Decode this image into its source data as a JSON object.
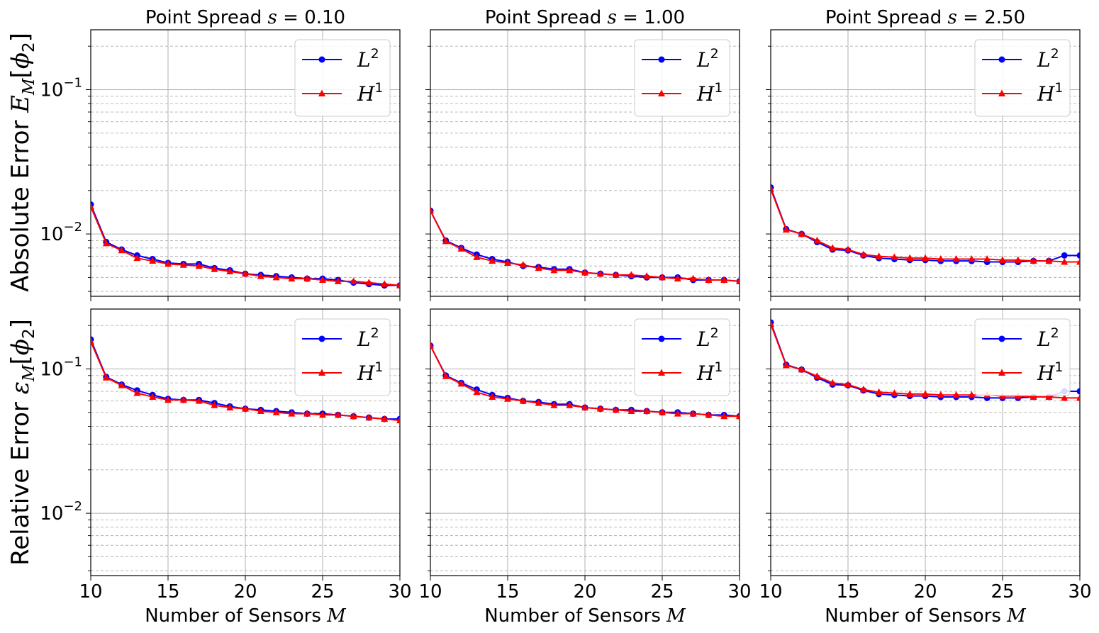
{
  "figure": {
    "row_ylabels": [
      {
        "prefix": "Absolute Error ",
        "sym": "E",
        "sub": "M",
        "bracket_open": "[",
        "phi": "ϕ",
        "phi_sub": "2",
        "bracket_close": "]"
      },
      {
        "prefix": "Relative Error ",
        "sym": "ε",
        "sub": "M",
        "bracket_open": "[",
        "phi": "ϕ",
        "phi_sub": "2",
        "bracket_close": "]"
      }
    ],
    "xlabel": {
      "text": "Number of Sensors ",
      "sym": "M"
    }
  },
  "chart_data": [
    {
      "type": "line",
      "row": 0,
      "col": 0,
      "title": {
        "text": "Point Spread ",
        "sym": "s",
        "eq": " = ",
        "value": "0.10"
      },
      "xlim": [
        10,
        30
      ],
      "ylim": [
        0.0037,
        0.26
      ],
      "yscale": "log",
      "xticks": [
        10,
        15,
        20,
        25,
        30
      ],
      "yticks": [
        {
          "v": 0.01,
          "base": "10",
          "exp": "−2"
        },
        {
          "v": 0.1,
          "base": "10",
          "exp": "−1"
        }
      ],
      "grid": true,
      "legend": "top-right",
      "x": [
        10,
        11,
        12,
        13,
        14,
        15,
        16,
        17,
        18,
        19,
        20,
        21,
        22,
        23,
        24,
        25,
        26,
        27,
        28,
        29,
        30
      ],
      "series": [
        {
          "name": "L",
          "sup": "2",
          "color": "#0000ff",
          "marker": "circle",
          "values": [
            0.016,
            0.0088,
            0.0078,
            0.0071,
            0.0067,
            0.0063,
            0.0062,
            0.0062,
            0.0058,
            0.0056,
            0.0053,
            0.0052,
            0.0051,
            0.005,
            0.0049,
            0.0049,
            0.0048,
            0.0046,
            0.0045,
            0.0044,
            0.0044
          ]
        },
        {
          "name": "H",
          "sup": "1",
          "color": "#ff0000",
          "marker": "triangle",
          "values": [
            0.0155,
            0.0086,
            0.0077,
            0.0068,
            0.0065,
            0.0062,
            0.0061,
            0.006,
            0.0057,
            0.0055,
            0.0053,
            0.0051,
            0.005,
            0.0049,
            0.0049,
            0.0048,
            0.0047,
            0.0047,
            0.0046,
            0.0045,
            0.0044
          ]
        }
      ]
    },
    {
      "type": "line",
      "row": 0,
      "col": 1,
      "title": {
        "text": "Point Spread ",
        "sym": "s",
        "eq": " = ",
        "value": "1.00"
      },
      "xlim": [
        10,
        30
      ],
      "ylim": [
        0.0037,
        0.26
      ],
      "yscale": "log",
      "xticks": [
        10,
        15,
        20,
        25,
        30
      ],
      "yticks": [
        {
          "v": 0.01,
          "base": "10",
          "exp": "−2"
        },
        {
          "v": 0.1,
          "base": "10",
          "exp": "−1"
        }
      ],
      "grid": true,
      "legend": "top-right",
      "x": [
        10,
        11,
        12,
        13,
        14,
        15,
        16,
        17,
        18,
        19,
        20,
        21,
        22,
        23,
        24,
        25,
        26,
        27,
        28,
        29,
        30
      ],
      "series": [
        {
          "name": "L",
          "sup": "2",
          "color": "#0000ff",
          "marker": "circle",
          "values": [
            0.0145,
            0.009,
            0.008,
            0.0072,
            0.0067,
            0.0064,
            0.006,
            0.0059,
            0.0057,
            0.0057,
            0.0054,
            0.0053,
            0.0052,
            0.0051,
            0.005,
            0.005,
            0.005,
            0.0048,
            0.0048,
            0.0048,
            0.0047
          ]
        },
        {
          "name": "H",
          "sup": "1",
          "color": "#ff0000",
          "marker": "triangle",
          "values": [
            0.0145,
            0.0089,
            0.0079,
            0.0069,
            0.0065,
            0.0063,
            0.0061,
            0.0058,
            0.0056,
            0.0056,
            0.0054,
            0.0053,
            0.0052,
            0.0052,
            0.0051,
            0.005,
            0.0049,
            0.0049,
            0.0048,
            0.0048,
            0.0047
          ]
        }
      ]
    },
    {
      "type": "line",
      "row": 0,
      "col": 2,
      "title": {
        "text": "Point Spread ",
        "sym": "s",
        "eq": " = ",
        "value": "2.50"
      },
      "xlim": [
        10,
        30
      ],
      "ylim": [
        0.0037,
        0.26
      ],
      "yscale": "log",
      "xticks": [
        10,
        15,
        20,
        25,
        30
      ],
      "yticks": [
        {
          "v": 0.01,
          "base": "10",
          "exp": "−2"
        },
        {
          "v": 0.1,
          "base": "10",
          "exp": "−1"
        }
      ],
      "grid": true,
      "legend": "top-right",
      "x": [
        10,
        11,
        12,
        13,
        14,
        15,
        16,
        17,
        18,
        19,
        20,
        21,
        22,
        23,
        24,
        25,
        26,
        27,
        28,
        29,
        30
      ],
      "series": [
        {
          "name": "L",
          "sup": "2",
          "color": "#0000ff",
          "marker": "circle",
          "values": [
            0.021,
            0.0108,
            0.01,
            0.0088,
            0.0078,
            0.0077,
            0.0071,
            0.0068,
            0.0067,
            0.0066,
            0.0066,
            0.0065,
            0.0065,
            0.0065,
            0.0064,
            0.0064,
            0.0064,
            0.0065,
            0.0065,
            0.0071,
            0.0071
          ]
        },
        {
          "name": "H",
          "sup": "1",
          "color": "#ff0000",
          "marker": "triangle",
          "values": [
            0.0205,
            0.0107,
            0.01,
            0.009,
            0.008,
            0.0078,
            0.0072,
            0.007,
            0.0069,
            0.0068,
            0.0068,
            0.0067,
            0.0067,
            0.0067,
            0.0067,
            0.0066,
            0.0066,
            0.0065,
            0.0065,
            0.0064,
            0.0064
          ]
        }
      ]
    },
    {
      "type": "line",
      "row": 1,
      "col": 0,
      "xlim": [
        10,
        30
      ],
      "ylim": [
        0.0037,
        0.26
      ],
      "yscale": "log",
      "xticks": [
        10,
        15,
        20,
        25,
        30
      ],
      "yticks": [
        {
          "v": 0.01,
          "base": "10",
          "exp": "−2"
        },
        {
          "v": 0.1,
          "base": "10",
          "exp": "−1"
        }
      ],
      "grid": true,
      "legend": "top-right",
      "x": [
        10,
        11,
        12,
        13,
        14,
        15,
        16,
        17,
        18,
        19,
        20,
        21,
        22,
        23,
        24,
        25,
        26,
        27,
        28,
        29,
        30
      ],
      "series": [
        {
          "name": "L",
          "sup": "2",
          "color": "#0000ff",
          "marker": "circle",
          "values": [
            0.16,
            0.088,
            0.078,
            0.071,
            0.066,
            0.062,
            0.061,
            0.061,
            0.058,
            0.055,
            0.053,
            0.052,
            0.051,
            0.05,
            0.049,
            0.049,
            0.048,
            0.047,
            0.046,
            0.045,
            0.045
          ]
        },
        {
          "name": "H",
          "sup": "1",
          "color": "#ff0000",
          "marker": "triangle",
          "values": [
            0.155,
            0.087,
            0.077,
            0.068,
            0.064,
            0.061,
            0.061,
            0.06,
            0.056,
            0.054,
            0.053,
            0.051,
            0.05,
            0.049,
            0.049,
            0.048,
            0.048,
            0.047,
            0.046,
            0.045,
            0.044
          ]
        }
      ]
    },
    {
      "type": "line",
      "row": 1,
      "col": 1,
      "xlim": [
        10,
        30
      ],
      "ylim": [
        0.0037,
        0.26
      ],
      "yscale": "log",
      "xticks": [
        10,
        15,
        20,
        25,
        30
      ],
      "yticks": [
        {
          "v": 0.01,
          "base": "10",
          "exp": "−2"
        },
        {
          "v": 0.1,
          "base": "10",
          "exp": "−1"
        }
      ],
      "grid": true,
      "legend": "top-right",
      "x": [
        10,
        11,
        12,
        13,
        14,
        15,
        16,
        17,
        18,
        19,
        20,
        21,
        22,
        23,
        24,
        25,
        26,
        27,
        28,
        29,
        30
      ],
      "series": [
        {
          "name": "L",
          "sup": "2",
          "color": "#0000ff",
          "marker": "circle",
          "values": [
            0.145,
            0.09,
            0.08,
            0.072,
            0.066,
            0.063,
            0.06,
            0.059,
            0.057,
            0.057,
            0.054,
            0.053,
            0.052,
            0.052,
            0.051,
            0.05,
            0.05,
            0.049,
            0.048,
            0.048,
            0.047
          ]
        },
        {
          "name": "H",
          "sup": "1",
          "color": "#ff0000",
          "marker": "triangle",
          "values": [
            0.145,
            0.089,
            0.079,
            0.069,
            0.064,
            0.062,
            0.06,
            0.058,
            0.056,
            0.056,
            0.054,
            0.053,
            0.052,
            0.051,
            0.051,
            0.05,
            0.049,
            0.049,
            0.048,
            0.047,
            0.047
          ]
        }
      ]
    },
    {
      "type": "line",
      "row": 1,
      "col": 2,
      "xlim": [
        10,
        30
      ],
      "ylim": [
        0.0037,
        0.26
      ],
      "yscale": "log",
      "xticks": [
        10,
        15,
        20,
        25,
        30
      ],
      "yticks": [
        {
          "v": 0.01,
          "base": "10",
          "exp": "−2"
        },
        {
          "v": 0.1,
          "base": "10",
          "exp": "−1"
        }
      ],
      "grid": true,
      "legend": "top-right",
      "x": [
        10,
        11,
        12,
        13,
        14,
        15,
        16,
        17,
        18,
        19,
        20,
        21,
        22,
        23,
        24,
        25,
        26,
        27,
        28,
        29,
        30
      ],
      "series": [
        {
          "name": "L",
          "sup": "2",
          "color": "#0000ff",
          "marker": "circle",
          "values": [
            0.21,
            0.107,
            0.099,
            0.087,
            0.078,
            0.077,
            0.071,
            0.067,
            0.066,
            0.065,
            0.065,
            0.064,
            0.064,
            0.064,
            0.063,
            0.063,
            0.063,
            0.064,
            0.064,
            0.07,
            0.07
          ]
        },
        {
          "name": "H",
          "sup": "1",
          "color": "#ff0000",
          "marker": "triangle",
          "values": [
            0.205,
            0.106,
            0.099,
            0.089,
            0.08,
            0.078,
            0.072,
            0.069,
            0.068,
            0.067,
            0.067,
            0.066,
            0.066,
            0.066,
            0.066,
            0.065,
            0.065,
            0.064,
            0.064,
            0.063,
            0.063
          ]
        }
      ]
    }
  ]
}
